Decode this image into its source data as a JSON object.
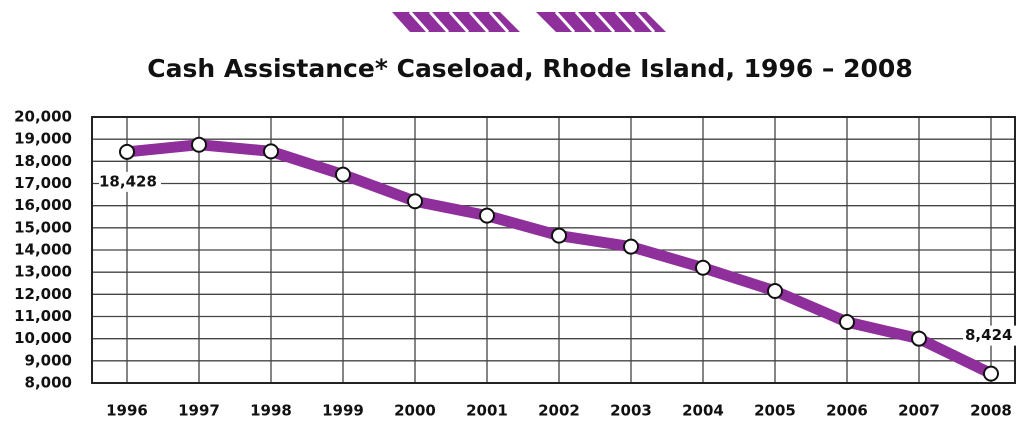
{
  "chart_data": {
    "type": "line",
    "title": "Cash Assistance* Caseload, Rhode Island, 1996 – 2008",
    "categories": [
      "1996",
      "1997",
      "1998",
      "1999",
      "2000",
      "2001",
      "2002",
      "2003",
      "2004",
      "2005",
      "2006",
      "2007",
      "2008"
    ],
    "values": [
      18428,
      18750,
      18450,
      17400,
      16200,
      15550,
      14650,
      14150,
      13200,
      12150,
      10750,
      10000,
      8424
    ],
    "value_labels": [
      "18,428",
      null,
      null,
      null,
      null,
      null,
      null,
      null,
      null,
      null,
      null,
      null,
      "8,424"
    ],
    "color": "#8e2f9c",
    "ylim": [
      8000,
      20000
    ],
    "yticks": [
      {
        "value": 8000,
        "label": "8,000"
      },
      {
        "value": 9000,
        "label": "9,000"
      },
      {
        "value": 10000,
        "label": "10,000"
      },
      {
        "value": 11000,
        "label": "11,000"
      },
      {
        "value": 12000,
        "label": "12,000"
      },
      {
        "value": 13000,
        "label": "13,000"
      },
      {
        "value": 14000,
        "label": "14,000"
      },
      {
        "value": 15000,
        "label": "15,000"
      },
      {
        "value": 16000,
        "label": "16,000"
      },
      {
        "value": 17000,
        "label": "17,000"
      },
      {
        "value": 18000,
        "label": "18,000"
      },
      {
        "value": 19000,
        "label": "19,000"
      },
      {
        "value": 20000,
        "label": "20,000"
      }
    ],
    "grid": true
  }
}
